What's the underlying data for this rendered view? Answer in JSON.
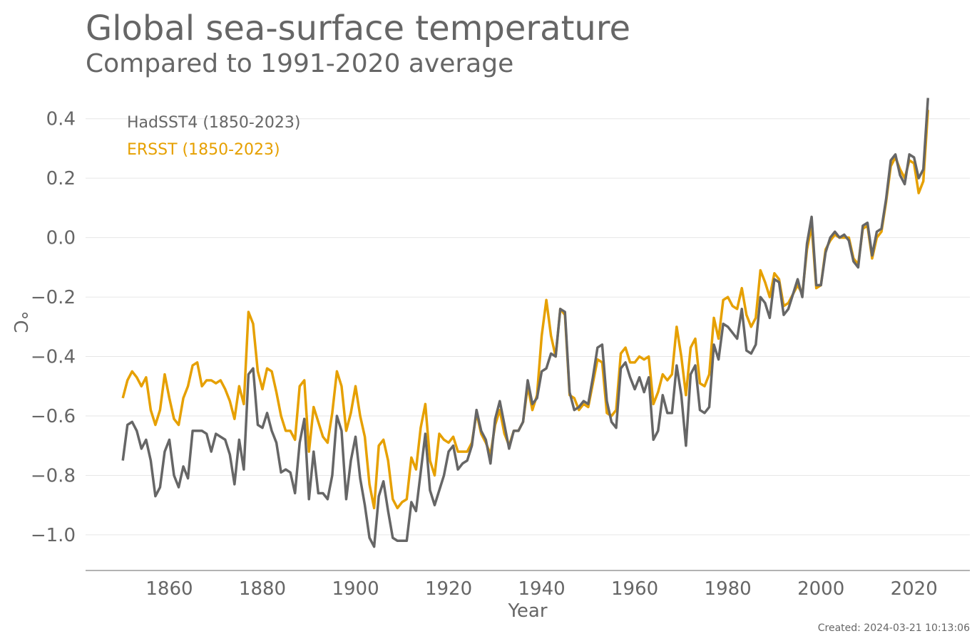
{
  "chart_data": {
    "type": "line",
    "title": "Global sea-surface temperature",
    "subtitle": "Compared to 1991-2020 average",
    "xlabel": "Year",
    "ylabel": "°C",
    "xlim": [
      1842,
      2032
    ],
    "ylim": [
      -1.12,
      0.5
    ],
    "x_ticks": [
      1860,
      1880,
      1900,
      1920,
      1940,
      1960,
      1980,
      2000,
      2020
    ],
    "y_ticks": [
      0.4,
      0.2,
      0.0,
      -0.2,
      -0.4,
      -0.6,
      -0.8,
      -1.0
    ],
    "y_tick_labels": [
      "0.4",
      "0.2",
      "0.0",
      "−0.2",
      "−0.4",
      "−0.6",
      "−0.8",
      "−1.0"
    ],
    "grid": "horizontal",
    "legend_position": "top-left",
    "x_start": 1850,
    "series": [
      {
        "name": "HadSST4 (1850-2023)",
        "color": "#666666",
        "values": [
          -0.75,
          -0.63,
          -0.62,
          -0.65,
          -0.71,
          -0.68,
          -0.75,
          -0.87,
          -0.84,
          -0.72,
          -0.68,
          -0.8,
          -0.84,
          -0.77,
          -0.81,
          -0.65,
          -0.65,
          -0.65,
          -0.66,
          -0.72,
          -0.66,
          -0.67,
          -0.68,
          -0.73,
          -0.83,
          -0.68,
          -0.78,
          -0.46,
          -0.44,
          -0.63,
          -0.64,
          -0.59,
          -0.65,
          -0.69,
          -0.79,
          -0.78,
          -0.79,
          -0.86,
          -0.69,
          -0.61,
          -0.88,
          -0.72,
          -0.86,
          -0.86,
          -0.88,
          -0.8,
          -0.6,
          -0.65,
          -0.88,
          -0.75,
          -0.67,
          -0.81,
          -0.9,
          -1.01,
          -1.04,
          -0.87,
          -0.82,
          -0.92,
          -1.01,
          -1.02,
          -1.02,
          -1.02,
          -0.89,
          -0.92,
          -0.79,
          -0.66,
          -0.85,
          -0.9,
          -0.85,
          -0.8,
          -0.72,
          -0.7,
          -0.78,
          -0.76,
          -0.75,
          -0.7,
          -0.58,
          -0.65,
          -0.68,
          -0.76,
          -0.61,
          -0.55,
          -0.63,
          -0.71,
          -0.65,
          -0.65,
          -0.62,
          -0.48,
          -0.56,
          -0.54,
          -0.45,
          -0.44,
          -0.39,
          -0.4,
          -0.24,
          -0.25,
          -0.52,
          -0.58,
          -0.57,
          -0.55,
          -0.56,
          -0.47,
          -0.37,
          -0.36,
          -0.55,
          -0.62,
          -0.64,
          -0.44,
          -0.42,
          -0.47,
          -0.51,
          -0.47,
          -0.52,
          -0.47,
          -0.68,
          -0.65,
          -0.53,
          -0.59,
          -0.59,
          -0.43,
          -0.53,
          -0.7,
          -0.46,
          -0.43,
          -0.58,
          -0.59,
          -0.57,
          -0.36,
          -0.41,
          -0.29,
          -0.3,
          -0.32,
          -0.34,
          -0.24,
          -0.38,
          -0.39,
          -0.36,
          -0.2,
          -0.22,
          -0.27,
          -0.14,
          -0.15,
          -0.26,
          -0.24,
          -0.19,
          -0.14,
          -0.2,
          -0.02,
          0.07,
          -0.16,
          -0.16,
          -0.05,
          0.0,
          0.02,
          0.0,
          0.01,
          -0.01,
          -0.08,
          -0.1,
          0.04,
          0.05,
          -0.06,
          0.02,
          0.03,
          0.13,
          0.26,
          0.28,
          0.21,
          0.18,
          0.28,
          0.27,
          0.2,
          0.23,
          0.47
        ]
      },
      {
        "name": "ERSST (1850-2023)",
        "color": "#E6A000",
        "values": [
          -0.54,
          -0.48,
          -0.45,
          -0.47,
          -0.5,
          -0.47,
          -0.58,
          -0.63,
          -0.58,
          -0.46,
          -0.54,
          -0.61,
          -0.63,
          -0.54,
          -0.5,
          -0.43,
          -0.42,
          -0.5,
          -0.48,
          -0.48,
          -0.49,
          -0.48,
          -0.51,
          -0.55,
          -0.61,
          -0.5,
          -0.56,
          -0.25,
          -0.29,
          -0.45,
          -0.51,
          -0.44,
          -0.45,
          -0.52,
          -0.6,
          -0.65,
          -0.65,
          -0.68,
          -0.5,
          -0.48,
          -0.72,
          -0.57,
          -0.62,
          -0.67,
          -0.69,
          -0.59,
          -0.45,
          -0.5,
          -0.65,
          -0.59,
          -0.5,
          -0.6,
          -0.67,
          -0.83,
          -0.91,
          -0.7,
          -0.68,
          -0.75,
          -0.88,
          -0.91,
          -0.89,
          -0.88,
          -0.74,
          -0.78,
          -0.64,
          -0.56,
          -0.75,
          -0.8,
          -0.66,
          -0.68,
          -0.69,
          -0.67,
          -0.72,
          -0.72,
          -0.72,
          -0.69,
          -0.59,
          -0.66,
          -0.69,
          -0.73,
          -0.63,
          -0.58,
          -0.66,
          -0.7,
          -0.65,
          -0.65,
          -0.62,
          -0.5,
          -0.58,
          -0.53,
          -0.33,
          -0.21,
          -0.33,
          -0.4,
          -0.24,
          -0.26,
          -0.53,
          -0.54,
          -0.58,
          -0.56,
          -0.57,
          -0.49,
          -0.41,
          -0.42,
          -0.59,
          -0.6,
          -0.58,
          -0.39,
          -0.37,
          -0.42,
          -0.42,
          -0.4,
          -0.41,
          -0.4,
          -0.56,
          -0.52,
          -0.46,
          -0.48,
          -0.46,
          -0.3,
          -0.4,
          -0.53,
          -0.37,
          -0.34,
          -0.49,
          -0.5,
          -0.46,
          -0.27,
          -0.34,
          -0.21,
          -0.2,
          -0.23,
          -0.24,
          -0.17,
          -0.26,
          -0.3,
          -0.27,
          -0.11,
          -0.15,
          -0.2,
          -0.12,
          -0.14,
          -0.23,
          -0.22,
          -0.19,
          -0.16,
          -0.19,
          -0.04,
          0.04,
          -0.17,
          -0.16,
          -0.04,
          -0.01,
          0.01,
          0.0,
          0.0,
          0.0,
          -0.07,
          -0.09,
          0.03,
          0.04,
          -0.07,
          0.0,
          0.02,
          0.12,
          0.24,
          0.27,
          0.23,
          0.2,
          0.26,
          0.25,
          0.15,
          0.19,
          0.43
        ]
      }
    ]
  },
  "footer": {
    "created": "Created: 2024-03-21 10:13:06"
  }
}
